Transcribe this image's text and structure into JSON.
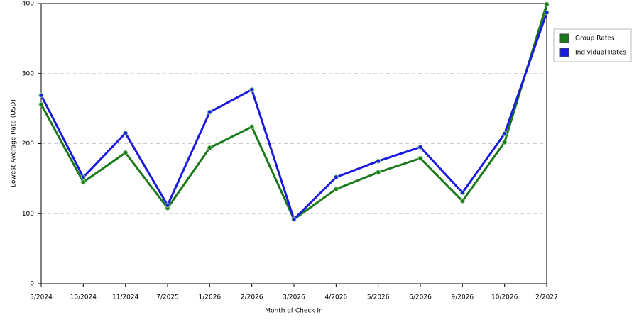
{
  "chart_data": {
    "type": "line",
    "x_label": "Month of Check In",
    "y_label": "Lowest Average Rate (USD)",
    "categories": [
      "3/2024",
      "10/2024",
      "11/2024",
      "7/2025",
      "1/2026",
      "2/2026",
      "3/2026",
      "4/2026",
      "5/2026",
      "6/2026",
      "9/2026",
      "10/2026",
      "2/2027"
    ],
    "series": [
      {
        "name": "Group Rates",
        "color": "#1a7a1a",
        "values": [
          256,
          145,
          187,
          108,
          194,
          224,
          92,
          135,
          159,
          179,
          118,
          202,
          399
        ]
      },
      {
        "name": "Individual Rates",
        "color": "#1a1ae0",
        "values": [
          269,
          152,
          215,
          112,
          245,
          277,
          92,
          152,
          175,
          195,
          130,
          214,
          387
        ]
      }
    ],
    "ylim": [
      0,
      400
    ],
    "yticks": [
      0,
      100,
      200,
      300,
      400
    ],
    "grid": true,
    "legend": "right"
  }
}
